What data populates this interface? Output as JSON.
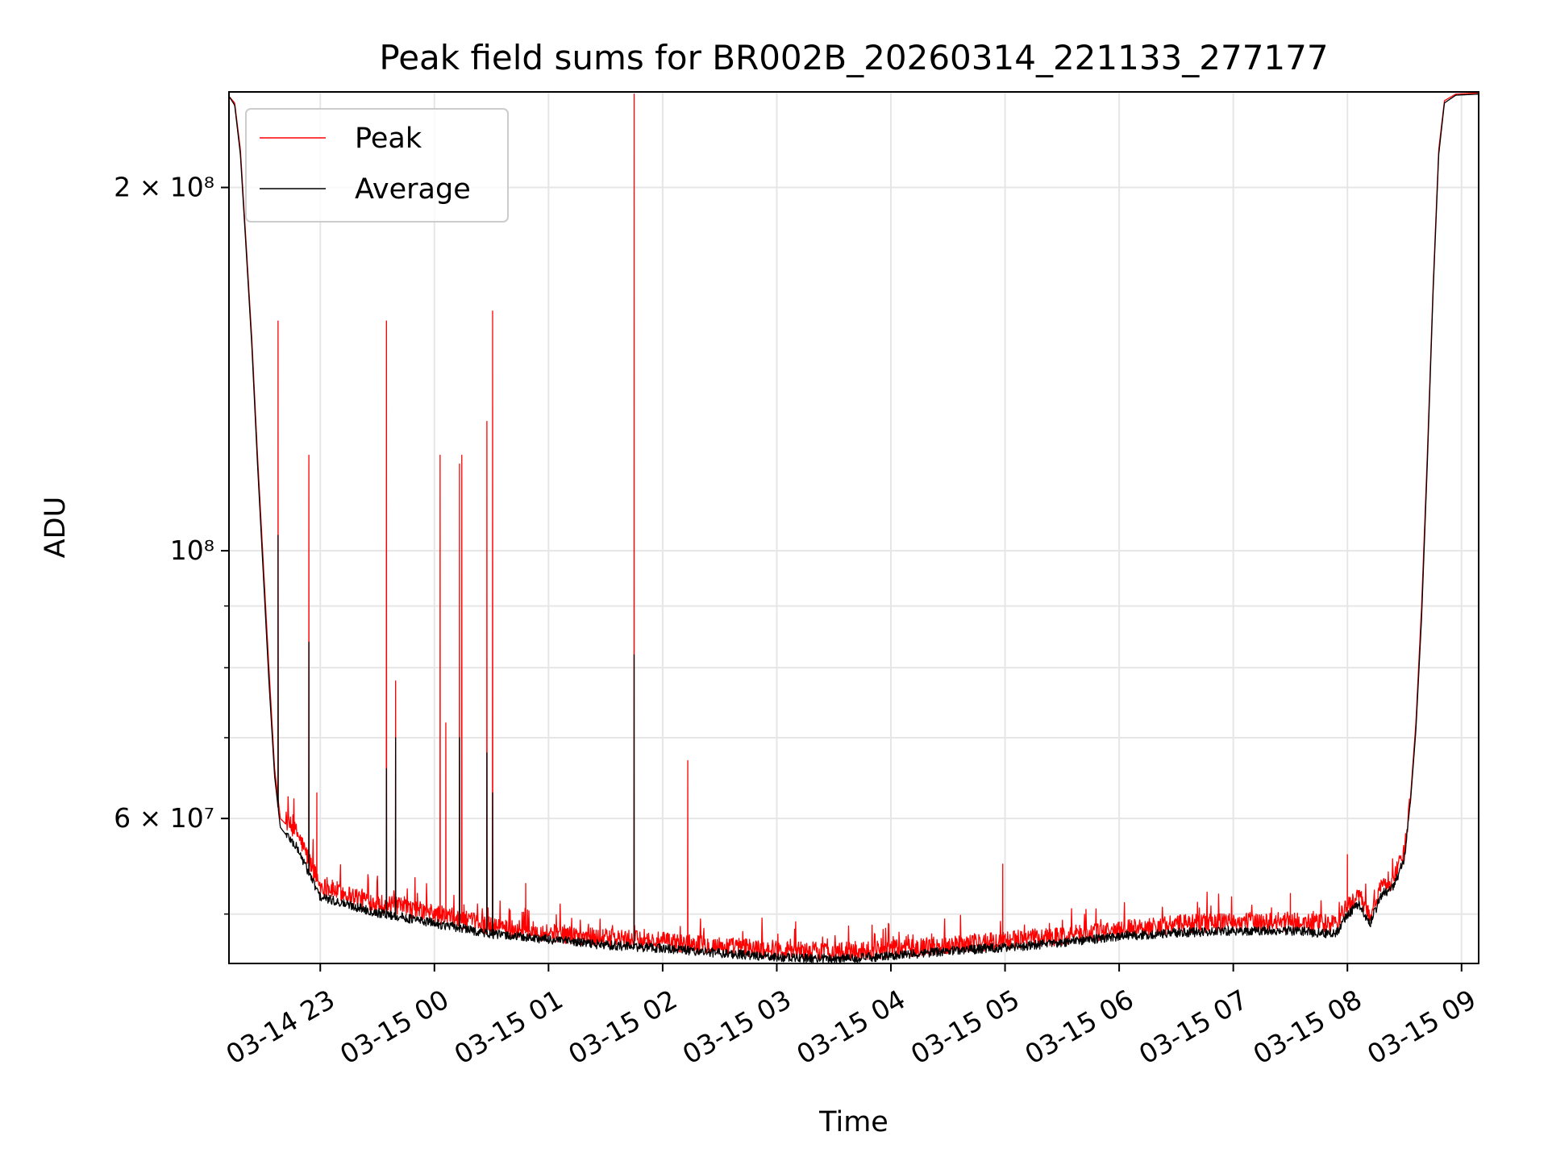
{
  "chart_data": {
    "type": "line",
    "title": "Peak field sums for BR002B_20260314_221133_277177",
    "xlabel": "Time",
    "ylabel": "ADU",
    "yscale": "log",
    "ylim": [
      45500000,
      240000000
    ],
    "xlim_hours": [
      -1.8,
      9.15
    ],
    "grid": true,
    "legend_position": "top-left",
    "x_ticks": [
      {
        "hour": -1,
        "label": "03-14 23"
      },
      {
        "hour": 0,
        "label": "03-15 00"
      },
      {
        "hour": 1,
        "label": "03-15 01"
      },
      {
        "hour": 2,
        "label": "03-15 02"
      },
      {
        "hour": 3,
        "label": "03-15 03"
      },
      {
        "hour": 4,
        "label": "03-15 04"
      },
      {
        "hour": 5,
        "label": "03-15 05"
      },
      {
        "hour": 6,
        "label": "03-15 06"
      },
      {
        "hour": 7,
        "label": "03-15 07"
      },
      {
        "hour": 8,
        "label": "03-15 08"
      },
      {
        "hour": 9,
        "label": "03-15 09"
      }
    ],
    "y_ticks": [
      {
        "value": 200000000,
        "label": "2 × 10⁸"
      },
      {
        "value": 100000000,
        "label": "10⁸"
      },
      {
        "value": 60000000,
        "label": "6 × 10⁷"
      }
    ],
    "y_minor_ticks": [
      50000000,
      70000000,
      80000000,
      90000000
    ],
    "series": [
      {
        "name": "Peak",
        "color": "#ff0000",
        "baseline": [
          [
            -1.8,
            238000000
          ],
          [
            -1.75,
            235000000
          ],
          [
            -1.7,
            215000000
          ],
          [
            -1.65,
            180000000
          ],
          [
            -1.6,
            150000000
          ],
          [
            -1.55,
            120000000
          ],
          [
            -1.5,
            98000000
          ],
          [
            -1.45,
            80000000
          ],
          [
            -1.4,
            66000000
          ],
          [
            -1.35,
            60000000
          ],
          [
            -1.2,
            58000000
          ],
          [
            -1.0,
            52500000
          ],
          [
            -0.5,
            50800000
          ],
          [
            0.0,
            49800000
          ],
          [
            0.5,
            48600000
          ],
          [
            1.0,
            48000000
          ],
          [
            1.5,
            47500000
          ],
          [
            2.0,
            47200000
          ],
          [
            2.5,
            46800000
          ],
          [
            3.0,
            46500000
          ],
          [
            3.5,
            46300000
          ],
          [
            4.0,
            46500000
          ],
          [
            4.5,
            46900000
          ],
          [
            5.0,
            47300000
          ],
          [
            5.5,
            47700000
          ],
          [
            6.0,
            48300000
          ],
          [
            6.5,
            48800000
          ],
          [
            7.0,
            49000000
          ],
          [
            7.5,
            49000000
          ],
          [
            7.9,
            48800000
          ],
          [
            8.0,
            50500000
          ],
          [
            8.1,
            51500000
          ],
          [
            8.2,
            49500000
          ],
          [
            8.3,
            52500000
          ],
          [
            8.4,
            53000000
          ],
          [
            8.5,
            56000000
          ],
          [
            8.55,
            62000000
          ],
          [
            8.6,
            72000000
          ],
          [
            8.65,
            90000000
          ],
          [
            8.7,
            120000000
          ],
          [
            8.75,
            165000000
          ],
          [
            8.8,
            215000000
          ],
          [
            8.85,
            236000000
          ],
          [
            8.95,
            239000000
          ],
          [
            9.15,
            239500000
          ]
        ],
        "spikes": [
          [
            -1.37,
            155000000
          ],
          [
            -1.1,
            120000000
          ],
          [
            -1.03,
            63000000
          ],
          [
            -0.42,
            155000000
          ],
          [
            -0.34,
            78000000
          ],
          [
            0.05,
            120000000
          ],
          [
            0.1,
            72000000
          ],
          [
            0.22,
            118000000
          ],
          [
            0.24,
            120000000
          ],
          [
            0.46,
            128000000
          ],
          [
            0.51,
            158000000
          ],
          [
            0.8,
            53000000
          ],
          [
            1.75,
            239000000
          ],
          [
            2.22,
            67000000
          ],
          [
            4.98,
            55000000
          ],
          [
            7.5,
            52000000
          ],
          [
            8.0,
            56000000
          ]
        ]
      },
      {
        "name": "Average",
        "color": "#000000",
        "baseline": [
          [
            -1.8,
            238000000
          ],
          [
            -1.75,
            234000000
          ],
          [
            -1.7,
            213000000
          ],
          [
            -1.65,
            178000000
          ],
          [
            -1.6,
            148000000
          ],
          [
            -1.55,
            118000000
          ],
          [
            -1.5,
            96000000
          ],
          [
            -1.45,
            78000000
          ],
          [
            -1.4,
            65000000
          ],
          [
            -1.35,
            59000000
          ],
          [
            -1.2,
            56500000
          ],
          [
            -1.0,
            51500000
          ],
          [
            -0.5,
            50000000
          ],
          [
            0.0,
            49000000
          ],
          [
            0.5,
            48000000
          ],
          [
            1.0,
            47500000
          ],
          [
            1.5,
            47000000
          ],
          [
            2.0,
            46700000
          ],
          [
            2.5,
            46300000
          ],
          [
            3.0,
            45900000
          ],
          [
            3.5,
            45800000
          ],
          [
            4.0,
            46000000
          ],
          [
            4.5,
            46500000
          ],
          [
            5.0,
            46800000
          ],
          [
            5.5,
            47200000
          ],
          [
            6.0,
            47800000
          ],
          [
            6.5,
            48100000
          ],
          [
            7.0,
            48300000
          ],
          [
            7.5,
            48300000
          ],
          [
            7.9,
            48000000
          ],
          [
            8.0,
            49800000
          ],
          [
            8.1,
            50800000
          ],
          [
            8.2,
            49000000
          ],
          [
            8.3,
            51800000
          ],
          [
            8.4,
            52400000
          ],
          [
            8.5,
            55500000
          ],
          [
            8.55,
            61500000
          ],
          [
            8.6,
            71000000
          ],
          [
            8.65,
            88000000
          ],
          [
            8.7,
            118000000
          ],
          [
            8.75,
            163000000
          ],
          [
            8.8,
            213000000
          ],
          [
            8.85,
            235000000
          ],
          [
            8.95,
            238500000
          ],
          [
            9.15,
            239000000
          ]
        ],
        "spikes": [
          [
            -1.37,
            103000000
          ],
          [
            -1.1,
            84000000
          ],
          [
            -0.42,
            66000000
          ],
          [
            -0.34,
            70000000
          ],
          [
            0.22,
            70000000
          ],
          [
            0.46,
            68000000
          ],
          [
            0.51,
            63000000
          ],
          [
            1.75,
            82000000
          ]
        ]
      }
    ]
  }
}
